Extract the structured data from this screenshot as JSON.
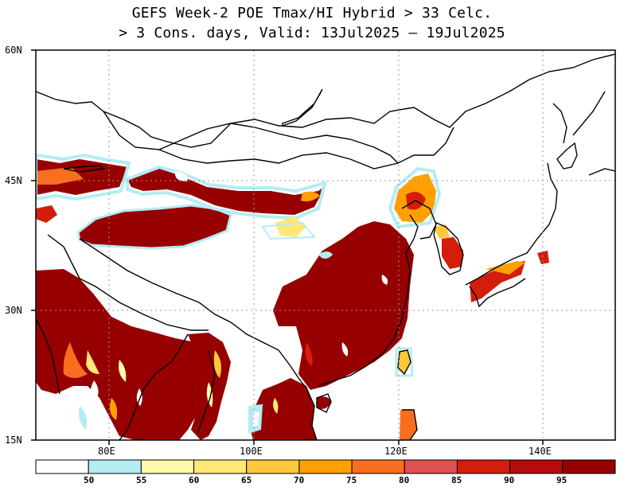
{
  "title": {
    "line1": "GEFS Week-2 POE Tmax/HI Hybrid > 33 Celc.",
    "line2": "> 3 Cons. days, Valid: 13Jul2025 – 19Jul2025"
  },
  "lat_labels": [
    "60N",
    "45N",
    "30N",
    "15N"
  ],
  "lon_labels": [
    "80E",
    "100E",
    "120E",
    "140E"
  ],
  "colorbar": {
    "labels": [
      "50",
      "55",
      "60",
      "65",
      "70",
      "75",
      "80",
      "85",
      "90",
      "95"
    ],
    "colors": [
      "#ffffff",
      "#b4ecf4",
      "#fffaaa",
      "#ffe878",
      "#ffc83c",
      "#ffa000",
      "#f86e1e",
      "#e05050",
      "#d21e0a",
      "#b40a0a",
      "#960000"
    ]
  },
  "map": {
    "lat_range": [
      15,
      60
    ],
    "lon_range": [
      70,
      150
    ],
    "grid": "dotted"
  }
}
